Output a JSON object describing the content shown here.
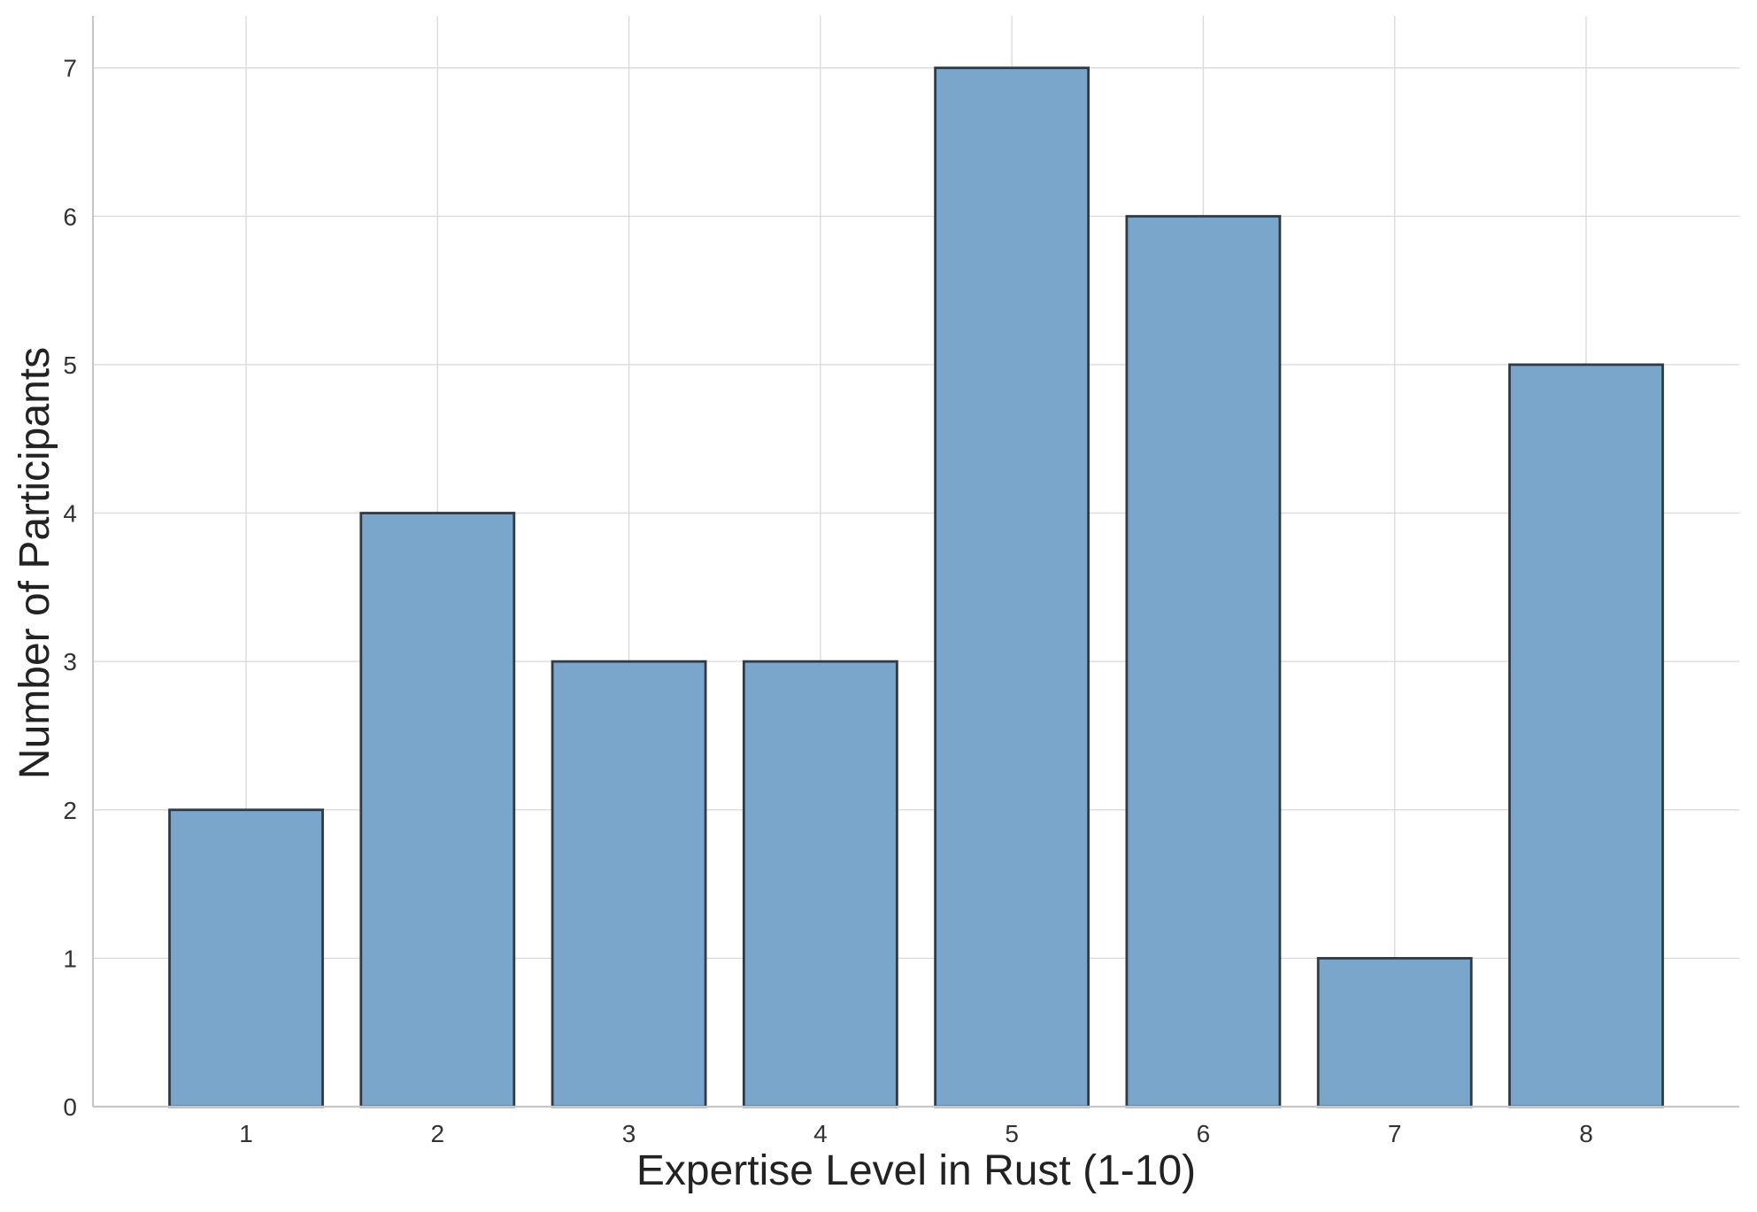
{
  "chart_data": {
    "type": "bar",
    "title": "",
    "xlabel": "Expertise Level in Rust (1-10)",
    "ylabel": "Number of Participants",
    "categories": [
      "1",
      "2",
      "3",
      "4",
      "5",
      "6",
      "7",
      "8"
    ],
    "values": [
      2,
      4,
      3,
      3,
      7,
      6,
      1,
      5
    ],
    "ylim": [
      0,
      7.35
    ],
    "yticks": [
      0,
      1,
      2,
      3,
      4,
      5,
      6,
      7
    ],
    "grid": true,
    "legend": "none",
    "colors": {
      "bar_fill": "#7ba6cb",
      "bar_edge": "#2f3a45",
      "grid": "#d9d9d9",
      "axis": "#c7c7c7",
      "text": "#333333"
    }
  }
}
